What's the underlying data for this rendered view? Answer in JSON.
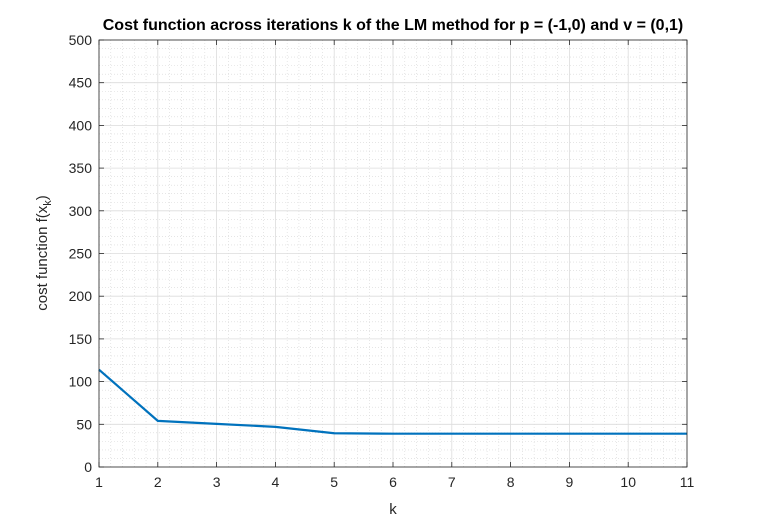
{
  "chart_data": {
    "type": "line",
    "title": "Cost function across iterations k of the LM method for p = (-1,0) and v = (0,1)",
    "xlabel": "k",
    "ylabel_main": "cost function f(x",
    "ylabel_sub": "k",
    "ylabel_close": ")",
    "xlim": [
      1,
      11
    ],
    "ylim": [
      0,
      500
    ],
    "x_ticks": [
      1,
      2,
      3,
      4,
      5,
      6,
      7,
      8,
      9,
      10,
      11
    ],
    "y_ticks": [
      0,
      50,
      100,
      150,
      200,
      250,
      300,
      350,
      400,
      450,
      500
    ],
    "grid": true,
    "minor_grid": true,
    "series": [
      {
        "color": "#0072BD",
        "x": [
          1,
          2,
          3,
          4,
          5,
          6,
          7,
          8,
          9,
          10,
          11
        ],
        "y": [
          114,
          54,
          50.5,
          47,
          39.5,
          39,
          39,
          39,
          39,
          39,
          39
        ]
      }
    ]
  }
}
